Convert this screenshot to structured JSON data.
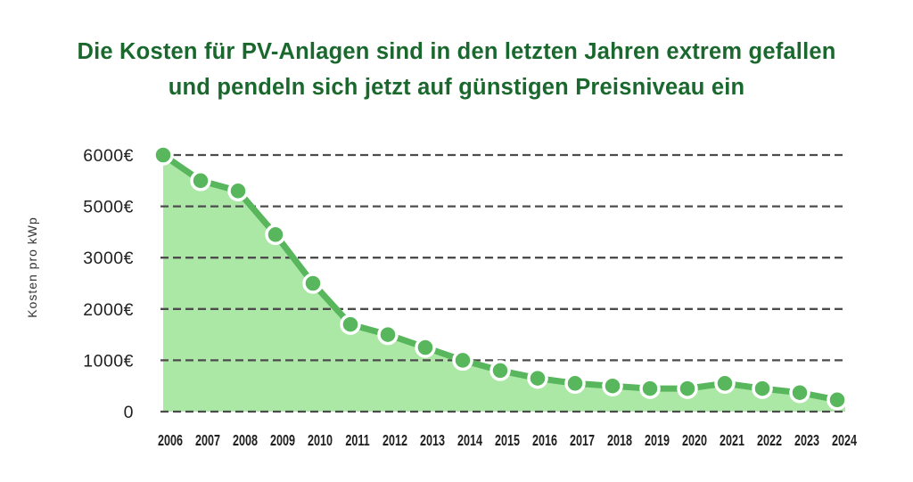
{
  "title": {
    "line1": "Die Kosten für PV-Anlagen sind in den letzten Jahren extrem gefallen",
    "line2": "und pendeln sich jetzt auf günstigen Preisniveau ein"
  },
  "chart_data": {
    "type": "area",
    "title": "Die Kosten für PV-Anlagen sind in den letzten Jahren extrem gefallen und pendeln sich jetzt auf günstigen Preisniveau ein",
    "ylabel": "Kosten pro kWp",
    "xlabel": "",
    "x": [
      "2006",
      "2007",
      "2008",
      "2009",
      "2010",
      "2011",
      "2012",
      "2013",
      "2014",
      "2015",
      "2016",
      "2017",
      "2018",
      "2019",
      "2020",
      "2021",
      "2022",
      "2023",
      "2024"
    ],
    "values": [
      6000,
      5500,
      5300,
      3900,
      2500,
      1700,
      1500,
      1250,
      1000,
      800,
      650,
      550,
      500,
      450,
      450,
      550,
      450,
      370,
      230
    ],
    "unit": "€ pro kWp",
    "y_axis": {
      "tick_labels": [
        "6000€",
        "5000€",
        "3000€",
        "2000€",
        "1000€",
        "0"
      ],
      "tick_values": [
        6000,
        5000,
        3000,
        2000,
        1000,
        0
      ],
      "note": "gridlines evenly spaced although the 4000 step is skipped between 5000 and 3000"
    },
    "ylim": [
      0,
      6000
    ],
    "grid": "horizontal dashed",
    "legend": "none",
    "marker": "filled circle with white ring",
    "colors": {
      "title": "#1a682e",
      "line": "#58b65c",
      "marker": "#58b65c",
      "marker_ring": "#ffffff",
      "fill": "#abe7a5",
      "grid": "#4c4c4c",
      "axis_text": "#1f1f1f"
    }
  }
}
